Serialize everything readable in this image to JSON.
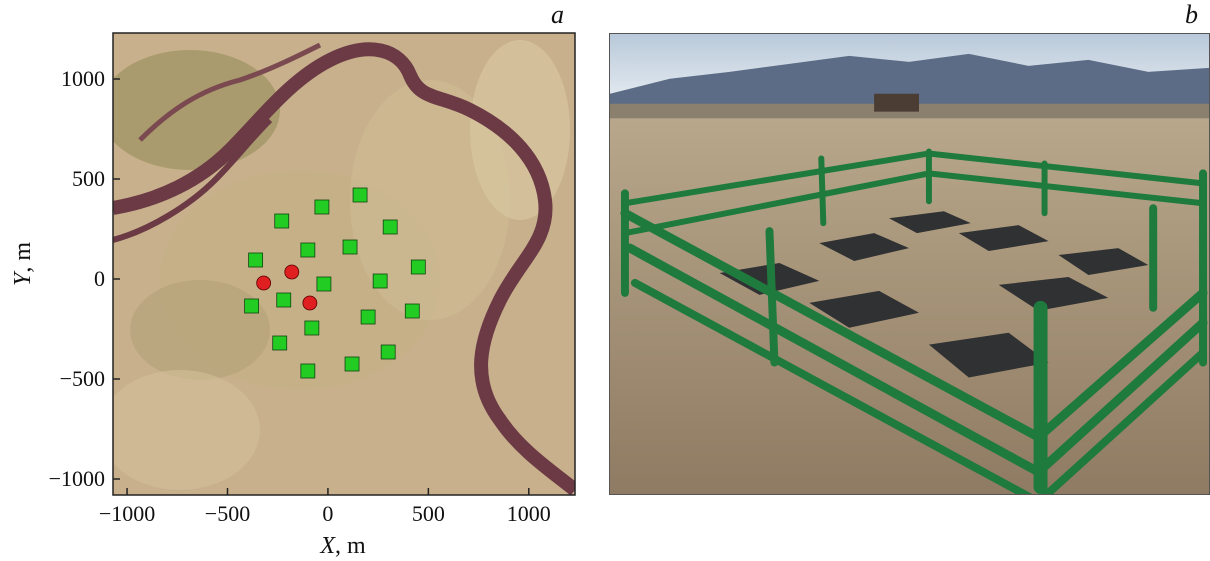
{
  "panels": {
    "a": {
      "label": "a",
      "chart_data": {
        "type": "scatter",
        "xlabel_var": "X",
        "xlabel_unit": ", m",
        "ylabel_var": "Y",
        "ylabel_unit": ", m",
        "xlim": [
          -1070,
          1230
        ],
        "ylim": [
          -1080,
          1230
        ],
        "xticks": [
          -1000,
          -500,
          0,
          500,
          1000
        ],
        "yticks": [
          -1000,
          -500,
          0,
          500,
          1000
        ],
        "xtick_labels": [
          "−1000",
          "−500",
          "0",
          "500",
          "1000"
        ],
        "ytick_labels": [
          "−1000",
          "−500",
          "0",
          "500",
          "1000"
        ],
        "background": "satellite image of river meander with steppe",
        "series": [
          {
            "marker": "square",
            "color": "#22cc22",
            "x": [
              -230,
              -30,
              160,
              310,
              -360,
              -100,
              110,
              450,
              -220,
              -20,
              260,
              -380,
              -80,
              200,
              420,
              -240,
              300,
              -100,
              120
            ],
            "y": [
              290,
              360,
              420,
              260,
              95,
              145,
              160,
              60,
              -105,
              -25,
              -10,
              -135,
              -245,
              -190,
              -160,
              -320,
              -365,
              -460,
              -425
            ]
          },
          {
            "marker": "circle",
            "color": "#e02020",
            "x": [
              -320,
              -180,
              -90
            ],
            "y": [
              -20,
              35,
              -120
            ]
          }
        ]
      }
    },
    "b": {
      "label": "b",
      "photo": "wooden green fence enclosing dark detector mats on a field, mountains behind"
    }
  }
}
